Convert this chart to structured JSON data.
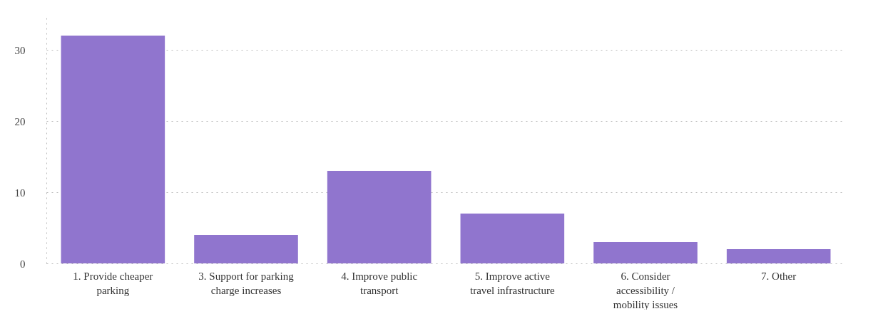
{
  "chart_data": {
    "type": "bar",
    "categories": [
      "1. Provide cheaper parking",
      "3. Support for parking charge increases",
      "4. Improve public transport",
      "5. Improve active travel infrastructure",
      "6. Consider accessibility / mobility issues",
      "7. Other"
    ],
    "values": [
      32,
      4,
      13,
      7,
      3,
      2
    ],
    "color": "#9075ce",
    "ylim": [
      0,
      35
    ],
    "yticks": [
      0,
      10,
      20,
      30
    ],
    "grid": "y"
  }
}
